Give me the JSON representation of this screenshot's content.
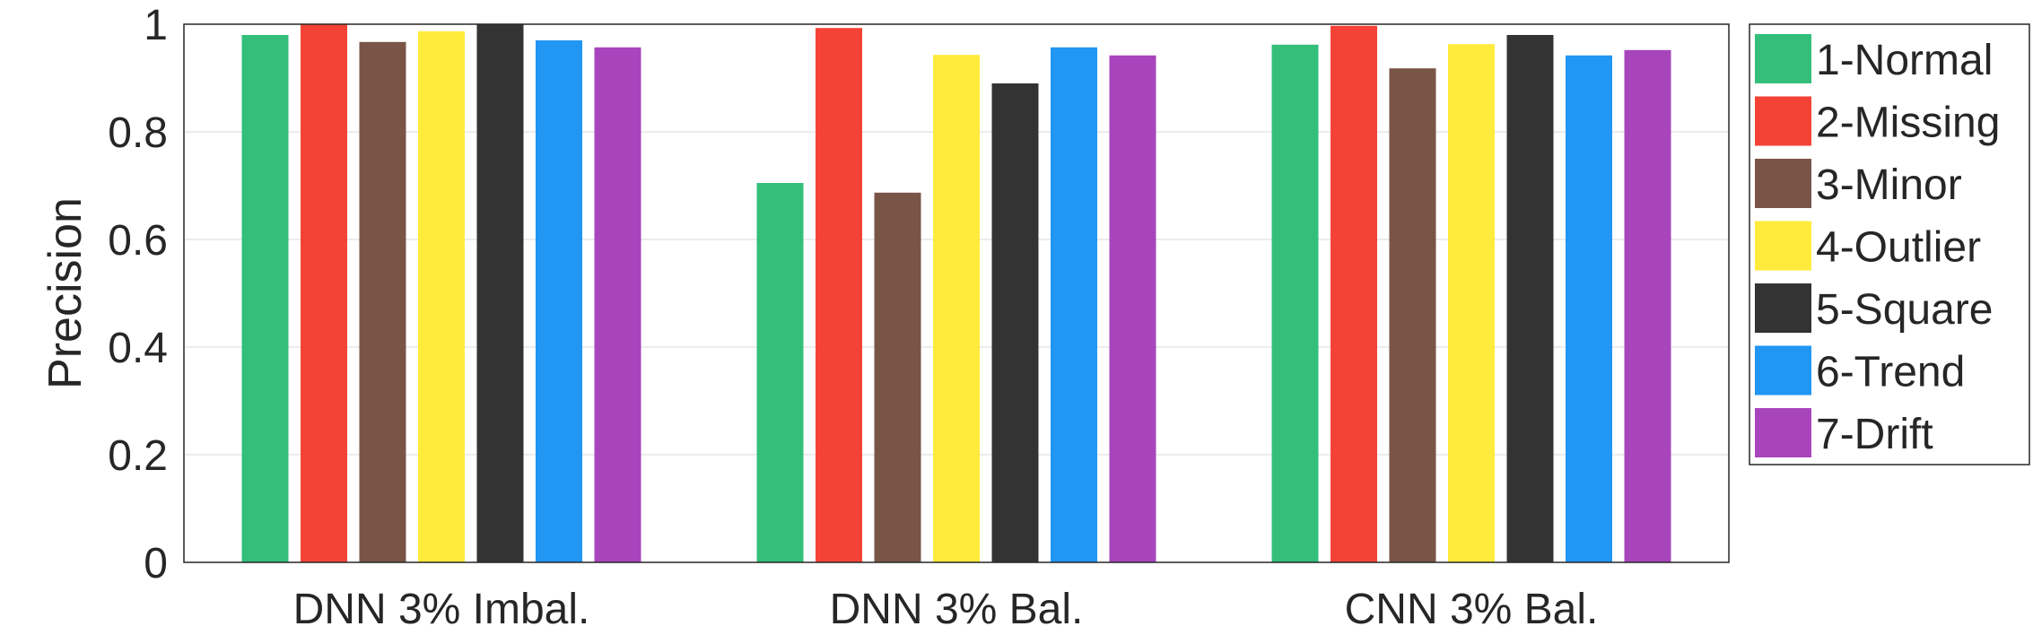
{
  "chart_data": {
    "type": "bar",
    "title": "",
    "xlabel": "",
    "ylabel": "Precision",
    "ylim": [
      0,
      1
    ],
    "yticks": [
      "0",
      "0.2",
      "0.4",
      "0.6",
      "0.8",
      "1"
    ],
    "categories": [
      "DNN 3% Imbal.",
      "DNN 3% Bal.",
      "CNN 3% Bal."
    ],
    "grid": true,
    "legend_position": "right",
    "series": [
      {
        "name": "1-Normal",
        "color": "#33bf7a",
        "values": [
          0.98,
          0.705,
          0.962
        ]
      },
      {
        "name": "2-Missing",
        "color": "#f44336",
        "values": [
          1.0,
          0.993,
          0.997
        ]
      },
      {
        "name": "3-Minor",
        "color": "#795548",
        "values": [
          0.967,
          0.687,
          0.918
        ]
      },
      {
        "name": "4-Outlier",
        "color": "#ffeb3b",
        "values": [
          0.987,
          0.943,
          0.963
        ]
      },
      {
        "name": "5-Square",
        "color": "#333333",
        "values": [
          1.0,
          0.89,
          0.98
        ]
      },
      {
        "name": "6-Trend",
        "color": "#2196f3",
        "values": [
          0.97,
          0.957,
          0.942
        ]
      },
      {
        "name": "7-Drift",
        "color": "#a845bd",
        "values": [
          0.957,
          0.942,
          0.952
        ]
      }
    ]
  }
}
